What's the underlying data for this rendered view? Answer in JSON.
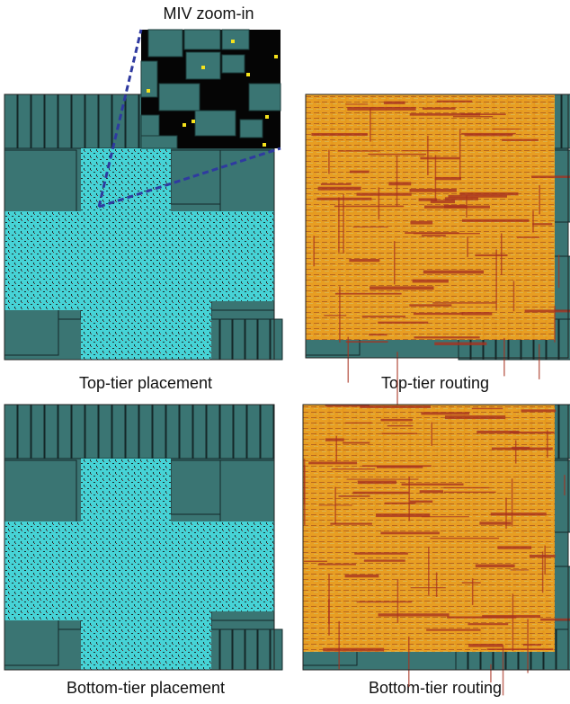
{
  "zoom_label": "MIV zoom-in",
  "panels": [
    {
      "caption": "Top-tier placement"
    },
    {
      "caption": "Top-tier routing"
    },
    {
      "caption": "Bottom-tier placement"
    },
    {
      "caption": "Bottom-tier routing"
    }
  ]
}
